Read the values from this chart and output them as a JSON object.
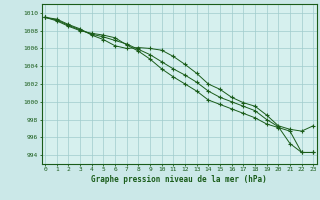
{
  "background_color": "#cbe8e8",
  "plot_background": "#d6f0ee",
  "line_color": "#1a5c1a",
  "grid_color": "#a0cccc",
  "xlabel": "Graphe pression niveau de la mer (hPa)",
  "xlim": [
    -0.3,
    23.3
  ],
  "ylim": [
    993.0,
    1011.0
  ],
  "yticks": [
    994,
    996,
    998,
    1000,
    1002,
    1004,
    1006,
    1008,
    1010
  ],
  "xticks": [
    0,
    1,
    2,
    3,
    4,
    5,
    6,
    7,
    8,
    9,
    10,
    11,
    12,
    13,
    14,
    15,
    16,
    17,
    18,
    19,
    20,
    21,
    22,
    23
  ],
  "series": [
    [
      1009.5,
      1009.3,
      1008.7,
      1008.2,
      1007.5,
      1007.0,
      1006.3,
      1006.0,
      1006.1,
      1006.0,
      1005.8,
      1005.1,
      1004.2,
      1003.2,
      1002.0,
      1001.4,
      1000.5,
      999.9,
      999.5,
      998.5,
      997.3,
      996.9,
      996.7,
      997.3
    ],
    [
      1009.5,
      1009.1,
      1008.5,
      1008.0,
      1007.7,
      1007.5,
      1007.2,
      1006.4,
      1005.7,
      1004.8,
      1003.7,
      1002.8,
      1002.0,
      1001.2,
      1000.2,
      999.7,
      999.2,
      998.7,
      998.2,
      997.5,
      997.1,
      996.7,
      994.3,
      994.3
    ],
    [
      1009.5,
      1009.2,
      1008.6,
      1008.1,
      1007.6,
      1007.3,
      1006.9,
      1006.5,
      1005.9,
      1005.3,
      1004.5,
      1003.7,
      1003.0,
      1002.2,
      1001.2,
      1000.5,
      1000.0,
      999.5,
      999.0,
      998.0,
      997.2,
      995.3,
      994.3,
      994.3
    ]
  ]
}
